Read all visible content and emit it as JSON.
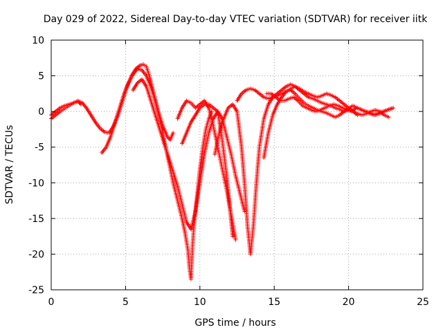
{
  "chart_data": {
    "type": "scatter",
    "title": "Day 029 of 2022, Sidereal Day-to-day VTEC variation (SDTVAR) for receiver iitk",
    "xlabel": "GPS time / hours",
    "ylabel": "SDTVAR / TECUs",
    "xlim": [
      0,
      25
    ],
    "ylim": [
      -25,
      10
    ],
    "xticks": [
      0,
      5,
      10,
      15,
      20,
      25
    ],
    "yticks": [
      -25,
      -20,
      -15,
      -10,
      -5,
      0,
      5,
      10
    ],
    "grid": true,
    "marker": "+",
    "color": "#ff0000",
    "series": [
      {
        "x": [
          0.0,
          0.3,
          0.6,
          0.9,
          1.2,
          1.5,
          1.8,
          2.1,
          2.4,
          2.7,
          3.0,
          3.3,
          3.6,
          3.9,
          4.2,
          4.5,
          4.8,
          5.1,
          5.4,
          5.7,
          6.0,
          6.2,
          6.4,
          6.6,
          6.9,
          7.2,
          7.5,
          7.8,
          8.0,
          8.2
        ],
        "y": [
          -1.0,
          -0.5,
          0.0,
          0.4,
          0.8,
          1.2,
          1.5,
          1.2,
          0.4,
          -0.6,
          -1.6,
          -2.4,
          -2.9,
          -3.0,
          -2.0,
          -0.5,
          1.5,
          3.5,
          5.0,
          6.0,
          6.5,
          6.6,
          6.3,
          5.0,
          2.5,
          0.0,
          -2.0,
          -3.5,
          -4.0,
          -3.0
        ]
      },
      {
        "x": [
          0.0,
          0.3,
          0.6,
          0.9,
          1.2,
          1.5,
          1.8,
          2.0
        ],
        "y": [
          -0.5,
          0.0,
          0.5,
          0.8,
          1.0,
          1.2,
          1.4,
          1.0
        ]
      },
      {
        "x": [
          3.4,
          3.7,
          4.0,
          4.3,
          4.6,
          4.9,
          5.2,
          5.5,
          5.8,
          6.1,
          6.4,
          6.7,
          7.0,
          7.3,
          7.6,
          7.9,
          8.2,
          8.5,
          8.8,
          9.0,
          9.2,
          9.3,
          9.4,
          9.5,
          9.6,
          9.8,
          10.0,
          10.2,
          10.4,
          10.6,
          10.8
        ],
        "y": [
          -5.8,
          -5.0,
          -3.5,
          -1.5,
          0.5,
          2.5,
          4.0,
          5.2,
          6.0,
          5.8,
          5.0,
          3.5,
          1.5,
          -1.0,
          -4.0,
          -7.0,
          -10.0,
          -12.5,
          -15.0,
          -17.0,
          -19.5,
          -22.0,
          -23.5,
          -19.0,
          -16.0,
          -12.0,
          -8.0,
          -5.0,
          -2.5,
          -1.0,
          0.0
        ]
      },
      {
        "x": [
          5.5,
          5.8,
          6.1,
          6.4,
          6.7,
          7.0,
          7.3,
          7.6,
          7.9,
          8.2,
          8.5,
          8.8,
          9.1,
          9.4,
          9.7,
          10.0,
          10.3,
          10.6,
          10.9,
          11.2,
          11.5,
          11.8,
          12.0,
          12.2
        ],
        "y": [
          3.0,
          4.0,
          4.5,
          3.5,
          1.5,
          -0.5,
          -2.5,
          -4.5,
          -6.5,
          -8.5,
          -10.5,
          -13.0,
          -15.5,
          -16.5,
          -14.0,
          -10.0,
          -6.0,
          -3.0,
          -1.0,
          0.0,
          -4.0,
          -9.0,
          -13.0,
          -17.5
        ]
      },
      {
        "x": [
          8.5,
          8.8,
          9.1,
          9.4,
          9.7,
          10.0,
          10.3,
          10.6,
          10.9,
          11.2,
          11.5,
          11.8,
          12.1,
          12.4
        ],
        "y": [
          -1.0,
          0.5,
          1.5,
          1.2,
          0.5,
          1.0,
          1.5,
          0.5,
          -2.0,
          -5.0,
          -8.0,
          -11.0,
          -14.5,
          -18.0
        ]
      },
      {
        "x": [
          8.8,
          9.1,
          9.4,
          9.7,
          10.0,
          10.3,
          10.6,
          10.9,
          11.2,
          11.5,
          11.8,
          12.1,
          12.4,
          12.7,
          13.0
        ],
        "y": [
          -4.5,
          -3.0,
          -1.5,
          -0.5,
          0.5,
          1.0,
          1.0,
          0.5,
          0.0,
          -1.0,
          -3.5,
          -6.0,
          -9.0,
          -11.5,
          -14.0
        ]
      },
      {
        "x": [
          11.0,
          11.3,
          11.6,
          11.9,
          12.2,
          12.5,
          12.8,
          13.0,
          13.2,
          13.4,
          13.6,
          13.8,
          14.0,
          14.3,
          14.6,
          14.9,
          15.2,
          15.5,
          15.8,
          16.1,
          16.4,
          16.7,
          17.0,
          17.3,
          17.6,
          17.9,
          18.2,
          18.5,
          18.8,
          19.1,
          19.4,
          19.7,
          20.0,
          20.3,
          20.6,
          20.9,
          21.2,
          21.5,
          21.8,
          22.1,
          22.4,
          22.7
        ],
        "y": [
          -6.0,
          -3.0,
          -1.0,
          0.5,
          1.0,
          0.0,
          -5.0,
          -10.0,
          -16.0,
          -20.0,
          -16.0,
          -10.0,
          -5.0,
          -1.0,
          1.0,
          2.0,
          2.5,
          3.0,
          3.5,
          3.8,
          3.5,
          3.0,
          2.5,
          2.0,
          1.8,
          1.5,
          1.2,
          1.0,
          0.8,
          0.5,
          0.3,
          0.0,
          0.2,
          0.0,
          -0.3,
          -0.5,
          -0.3,
          0.0,
          0.2,
          0.0,
          -0.5,
          -0.8
        ]
      },
      {
        "x": [
          12.5,
          12.8,
          13.1,
          13.4,
          13.7,
          14.0,
          14.3,
          14.6,
          14.9,
          15.2,
          15.5,
          15.8,
          16.1,
          16.4,
          16.7,
          17.0,
          17.3,
          17.6,
          17.9,
          18.2,
          18.5,
          18.8,
          19.1,
          19.4,
          19.7,
          20.0,
          20.3,
          20.6,
          20.9,
          21.2,
          21.5,
          21.8,
          22.1,
          22.4,
          22.7,
          23.0
        ],
        "y": [
          1.5,
          2.5,
          3.0,
          3.2,
          3.0,
          2.5,
          2.0,
          1.8,
          2.0,
          2.2,
          2.5,
          2.8,
          3.0,
          2.5,
          1.8,
          1.2,
          0.8,
          0.5,
          0.2,
          0.0,
          -0.2,
          -0.5,
          -0.8,
          -0.5,
          0.0,
          0.5,
          0.8,
          0.5,
          0.2,
          0.0,
          -0.2,
          -0.5,
          -0.3,
          0.0,
          0.3,
          0.5
        ]
      },
      {
        "x": [
          14.3,
          14.6,
          14.9,
          15.2,
          15.5,
          15.8,
          16.1,
          16.4,
          16.7,
          17.0,
          17.3,
          17.6,
          17.9,
          18.2,
          18.5,
          18.8,
          19.1,
          19.4,
          19.7,
          20.0,
          20.3,
          20.6
        ],
        "y": [
          -6.5,
          -3.0,
          -0.5,
          1.0,
          2.0,
          2.8,
          3.2,
          3.5,
          3.2,
          2.8,
          2.5,
          2.2,
          2.0,
          2.2,
          2.5,
          2.3,
          2.0,
          1.5,
          1.0,
          0.5,
          0.0,
          -0.5
        ]
      },
      {
        "x": [
          14.5,
          14.8,
          15.1,
          15.4,
          15.7,
          16.0,
          16.3,
          16.6,
          16.9,
          17.2,
          17.5,
          17.8,
          18.1,
          18.4,
          18.7,
          19.0,
          19.3,
          19.6,
          19.9,
          20.2,
          20.5,
          20.8,
          21.1,
          21.4,
          21.7,
          22.0,
          22.3,
          22.6,
          22.9
        ],
        "y": [
          2.5,
          2.5,
          2.0,
          1.5,
          1.5,
          1.8,
          2.0,
          1.5,
          0.8,
          0.5,
          0.2,
          0.0,
          0.2,
          0.5,
          0.8,
          1.0,
          0.8,
          0.5,
          0.2,
          0.0,
          0.5,
          0.3,
          0.0,
          -0.3,
          -0.5,
          -0.2,
          0.0,
          0.2,
          0.4
        ]
      }
    ]
  }
}
